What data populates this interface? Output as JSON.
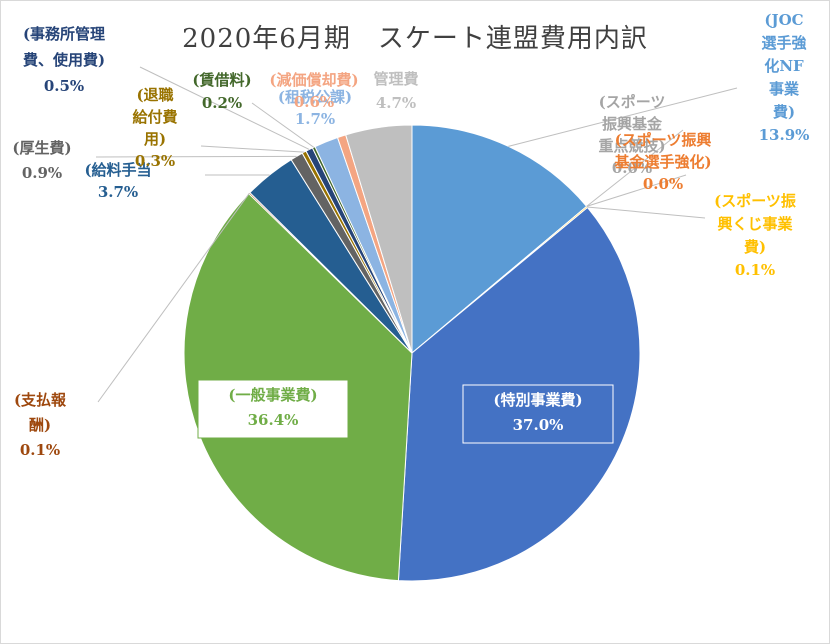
{
  "chart_data": {
    "type": "pie",
    "title": "2020年6月期　スケート連盟費用内訳",
    "slices": [
      {
        "name": "(JOC選手強化NF事業費)",
        "value": 13.9,
        "label": "13.9%",
        "color": "#5b9bd5",
        "label_color": "#5b9bd5"
      },
      {
        "name": "(スポーツ振興基金重点競技)",
        "value": 0.0,
        "label": "0.0%",
        "color": "#a5a5a5",
        "label_color": "#a5a5a5"
      },
      {
        "name": "(スポーツ振興基金選手強化)",
        "value": 0.0,
        "label": "0.0%",
        "color": "#ed7d31",
        "label_color": "#ed7d31"
      },
      {
        "name": "(スポーツ振興くじ事業費)",
        "value": 0.1,
        "label": "0.1%",
        "color": "#ffc000",
        "label_color": "#ffc000"
      },
      {
        "name": "(特別事業費)",
        "value": 37.0,
        "label": "37.0%",
        "color": "#4472c4",
        "label_color": "#ffffff"
      },
      {
        "name": "(一般事業費)",
        "value": 36.4,
        "label": "36.4%",
        "color": "#70ad47",
        "label_color": "#70ad47"
      },
      {
        "name": "(支払報酬)",
        "value": 0.1,
        "label": "0.1%",
        "color": "#9e480e",
        "label_color": "#9e480e"
      },
      {
        "name": "(給料手当)",
        "value": 3.7,
        "label": "3.7%",
        "color": "#255e91",
        "label_color": "#255e91"
      },
      {
        "name": "(厚生費)",
        "value": 0.9,
        "label": "0.9%",
        "color": "#636363",
        "label_color": "#636363"
      },
      {
        "name": "(退職給付費用)",
        "value": 0.3,
        "label": "0.3%",
        "color": "#997300",
        "label_color": "#997300"
      },
      {
        "name": "(事務所管理費、使用用費)",
        "value": 0.5,
        "label": "0.5%",
        "color": "#264478",
        "label_color": "#264478"
      },
      {
        "name": "(賃借料)",
        "value": 0.2,
        "label": "0.2%",
        "color": "#43682b",
        "label_color": "#43682b"
      },
      {
        "name": "(租税公課)",
        "value": 1.7,
        "label": "1.7%",
        "color": "#8cb4e2",
        "label_color": "#8cb4e2"
      },
      {
        "name": "(減価償却費)",
        "value": 0.6,
        "label": "0.6%",
        "color": "#f4a582",
        "label_color": "#f4a582"
      },
      {
        "name": "(管理費)",
        "value": 4.7,
        "label": "4.7%",
        "color": "#bfbfbf",
        "label_color": "#bfbfbf"
      }
    ],
    "label_lines": [
      [
        "(JOC",
        "選手強",
        "化NF",
        "事業",
        "費)",
        "13.9%"
      ],
      [
        "(スポーツ",
        "振興基金",
        "重点競技)",
        "0.0%"
      ],
      [
        "(スポーツ振興",
        "基金選手強化)",
        "0.0%"
      ],
      [
        "(スポーツ振",
        "興くじ事業",
        "費)",
        "0.1%"
      ],
      [
        "(特別事業費)",
        "37.0%"
      ],
      [
        "(一般事業費)",
        "36.4%"
      ],
      [
        "(支払報",
        "酬)",
        "0.1%"
      ],
      [
        "(給料手当",
        "3.7%"
      ],
      [
        "(厚生費)",
        "0.9%"
      ],
      [
        "(退職",
        "給付費",
        "用)",
        "0.3%"
      ],
      [
        "(事務所管理",
        "費、使用費)",
        "0.5%"
      ],
      [
        "(賃借料)",
        "0.2%"
      ],
      [
        "(租税公課)",
        "1.7%"
      ],
      [
        "(減価償却費)",
        "0.6%"
      ],
      [
        "管理費",
        "4.7%"
      ]
    ],
    "legend": "none"
  }
}
